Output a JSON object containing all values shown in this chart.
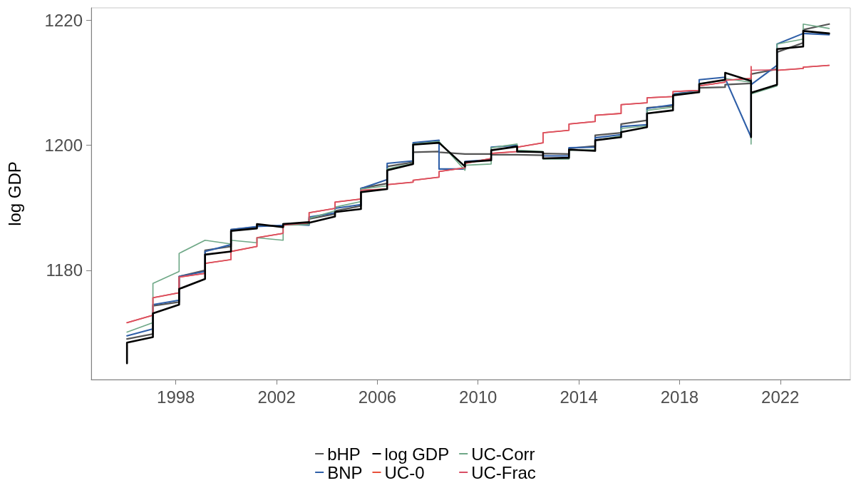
{
  "chart_data": {
    "type": "line",
    "ylabel": "log GDP",
    "x": [
      1996.06,
      1996.06,
      1997.09,
      1997.09,
      1998.13,
      1998.13,
      1999.16,
      1999.16,
      2000.19,
      2000.19,
      2001.22,
      2001.22,
      2002.26,
      2002.26,
      2003.29,
      2003.29,
      2004.32,
      2004.32,
      2005.35,
      2005.35,
      2006.39,
      2006.39,
      2007.42,
      2007.42,
      2008.45,
      2008.45,
      2009.48,
      2009.48,
      2010.52,
      2010.52,
      2011.55,
      2011.55,
      2012.58,
      2012.58,
      2013.61,
      2013.61,
      2014.65,
      2014.65,
      2015.68,
      2015.68,
      2016.71,
      2016.71,
      2017.74,
      2017.74,
      2018.78,
      2018.78,
      2019.81,
      2019.81,
      2020.84,
      2020.84,
      2020.84,
      2021.87,
      2021.87,
      2022.91,
      2022.91,
      2023.94
    ],
    "series": [
      {
        "name": "bHP",
        "color": "#555555",
        "values": [
          1169.0,
          1169.0,
          1169.8,
          1174.3,
          1174.9,
          1179.0,
          1180.0,
          1183.2,
          1183.8,
          1186.5,
          1186.9,
          1187.2,
          1187.0,
          1187.4,
          1187.4,
          1188.2,
          1189.0,
          1189.5,
          1190.3,
          1193.1,
          1193.9,
          1196.6,
          1197.3,
          1198.9,
          1199.0,
          1198.9,
          1198.6,
          1198.6,
          1198.6,
          1198.5,
          1198.5,
          1198.5,
          1198.4,
          1198.7,
          1198.6,
          1199.5,
          1199.9,
          1201.6,
          1202.0,
          1203.4,
          1204.0,
          1206.0,
          1206.3,
          1208.2,
          1208.6,
          1209.2,
          1209.3,
          1209.7,
          1209.9,
          1209.9,
          1211.4,
          1212.2,
          1214.9,
          1216.4,
          1218.5,
          1219.4
        ]
      },
      {
        "name": "BNP",
        "color": "#2f5fa8",
        "values": [
          1169.5,
          1169.5,
          1170.6,
          1174.5,
          1175.2,
          1179.0,
          1179.8,
          1183.0,
          1184.1,
          1186.5,
          1187.0,
          1187.0,
          1187.2,
          1187.4,
          1187.2,
          1188.5,
          1189.2,
          1189.9,
          1190.5,
          1193.1,
          1194.5,
          1197.1,
          1197.5,
          1200.4,
          1200.8,
          1196.2,
          1196.2,
          1197.4,
          1197.7,
          1199.7,
          1200.0,
          1199.0,
          1198.9,
          1198.3,
          1198.3,
          1199.6,
          1199.7,
          1201.2,
          1201.7,
          1203.0,
          1203.3,
          1205.9,
          1206.5,
          1208.2,
          1208.7,
          1210.5,
          1210.9,
          1210.7,
          1201.3,
          1201.3,
          1209.7,
          1212.8,
          1216.2,
          1217.9,
          1217.9,
          1217.7
        ]
      },
      {
        "name": "log GDP",
        "color": "#000000",
        "values": [
          1165.1,
          1168.4,
          1169.3,
          1173.1,
          1174.5,
          1177.0,
          1178.6,
          1182.5,
          1183.0,
          1186.3,
          1186.7,
          1187.4,
          1186.9,
          1187.4,
          1187.7,
          1187.6,
          1188.6,
          1189.3,
          1189.8,
          1192.5,
          1193.0,
          1196.0,
          1197.0,
          1200.1,
          1200.4,
          1200.4,
          1196.6,
          1197.3,
          1197.6,
          1199.2,
          1199.8,
          1199.0,
          1198.9,
          1197.9,
          1198.0,
          1199.3,
          1199.1,
          1200.8,
          1201.3,
          1202.1,
          1202.9,
          1205.1,
          1205.6,
          1208.0,
          1208.5,
          1209.8,
          1210.5,
          1211.6,
          1210.3,
          1201.3,
          1208.4,
          1209.7,
          1215.4,
          1215.8,
          1218.3,
          1217.9
        ]
      },
      {
        "name": "UC-0",
        "color": "#e8503a",
        "values": [
          1171.6,
          1171.6,
          1172.8,
          1175.6,
          1176.4,
          1178.9,
          1179.5,
          1181.1,
          1181.7,
          1183.0,
          1183.8,
          1185.2,
          1185.9,
          1187.2,
          1187.6,
          1189.2,
          1189.9,
          1190.9,
          1191.4,
          1192.8,
          1193.0,
          1193.7,
          1194.1,
          1194.4,
          1194.9,
          1195.8,
          1196.4,
          1197.1,
          1197.9,
          1198.7,
          1199.0,
          1199.7,
          1200.4,
          1202.0,
          1202.4,
          1203.4,
          1203.8,
          1204.8,
          1205.1,
          1206.5,
          1206.8,
          1207.6,
          1207.8,
          1208.6,
          1208.8,
          1209.5,
          1210.1,
          1210.4,
          1210.7,
          1212.6,
          null,
          1209.7,
          1212.0,
          1212.3,
          1212.5,
          1212.8
        ]
      },
      {
        "name": "UC-Corr",
        "color": "#6fa887",
        "values": [
          1170.1,
          1170.1,
          1171.6,
          1177.9,
          1179.8,
          1182.7,
          1184.8,
          1184.8,
          1184.2,
          1184.8,
          1184.4,
          1185.2,
          1184.8,
          1187.2,
          1187.3,
          1188.3,
          1189.5,
          1190.1,
          1191.0,
          1193.0,
          1193.5,
          1196.2,
          1197.1,
          1200.2,
          1200.6,
          1200.6,
          1196.0,
          1196.8,
          1197.0,
          1199.6,
          1200.2,
          1199.2,
          1199.0,
          1197.8,
          1197.8,
          1199.2,
          1199.3,
          1200.8,
          1201.5,
          1202.7,
          1203.1,
          1205.6,
          1206.1,
          1208.1,
          1208.6,
          1209.9,
          1210.4,
          1210.7,
          1210.1,
          1200.2,
          1208.2,
          1209.5,
          1216.2,
          1217.0,
          1219.4,
          1218.7
        ]
      },
      {
        "name": "UC-Frac",
        "color": "#d94f65",
        "values": [
          1171.6,
          1171.6,
          1172.8,
          1175.6,
          1176.4,
          1178.9,
          1179.5,
          1181.1,
          1181.7,
          1183.0,
          1183.8,
          1185.2,
          1185.9,
          1187.2,
          1187.6,
          1189.2,
          1189.9,
          1190.9,
          1191.4,
          1192.8,
          1193.0,
          1193.7,
          1194.1,
          1194.4,
          1194.9,
          1195.8,
          1196.4,
          1197.1,
          1197.9,
          1198.7,
          1199.0,
          1199.7,
          1200.4,
          1202.0,
          1202.4,
          1203.4,
          1203.8,
          1204.8,
          1205.1,
          1206.5,
          1206.8,
          1207.6,
          1207.8,
          1208.6,
          1208.8,
          1209.5,
          1210.1,
          1210.4,
          1210.7,
          1212.6,
          1212.0,
          1212.1,
          1212.0,
          1212.3,
          1212.5,
          1212.8
        ]
      }
    ],
    "xlim": [
      1994.64,
      2024.78
    ],
    "xticks": [
      1998,
      2002,
      2006,
      2010,
      2014,
      2018,
      2022
    ],
    "ylim": [
      1162.5,
      1222
    ],
    "yticks": [
      1180,
      1200,
      1220
    ],
    "legend": "bottom",
    "grid": false,
    "marker": "none",
    "line_style": "solid"
  }
}
